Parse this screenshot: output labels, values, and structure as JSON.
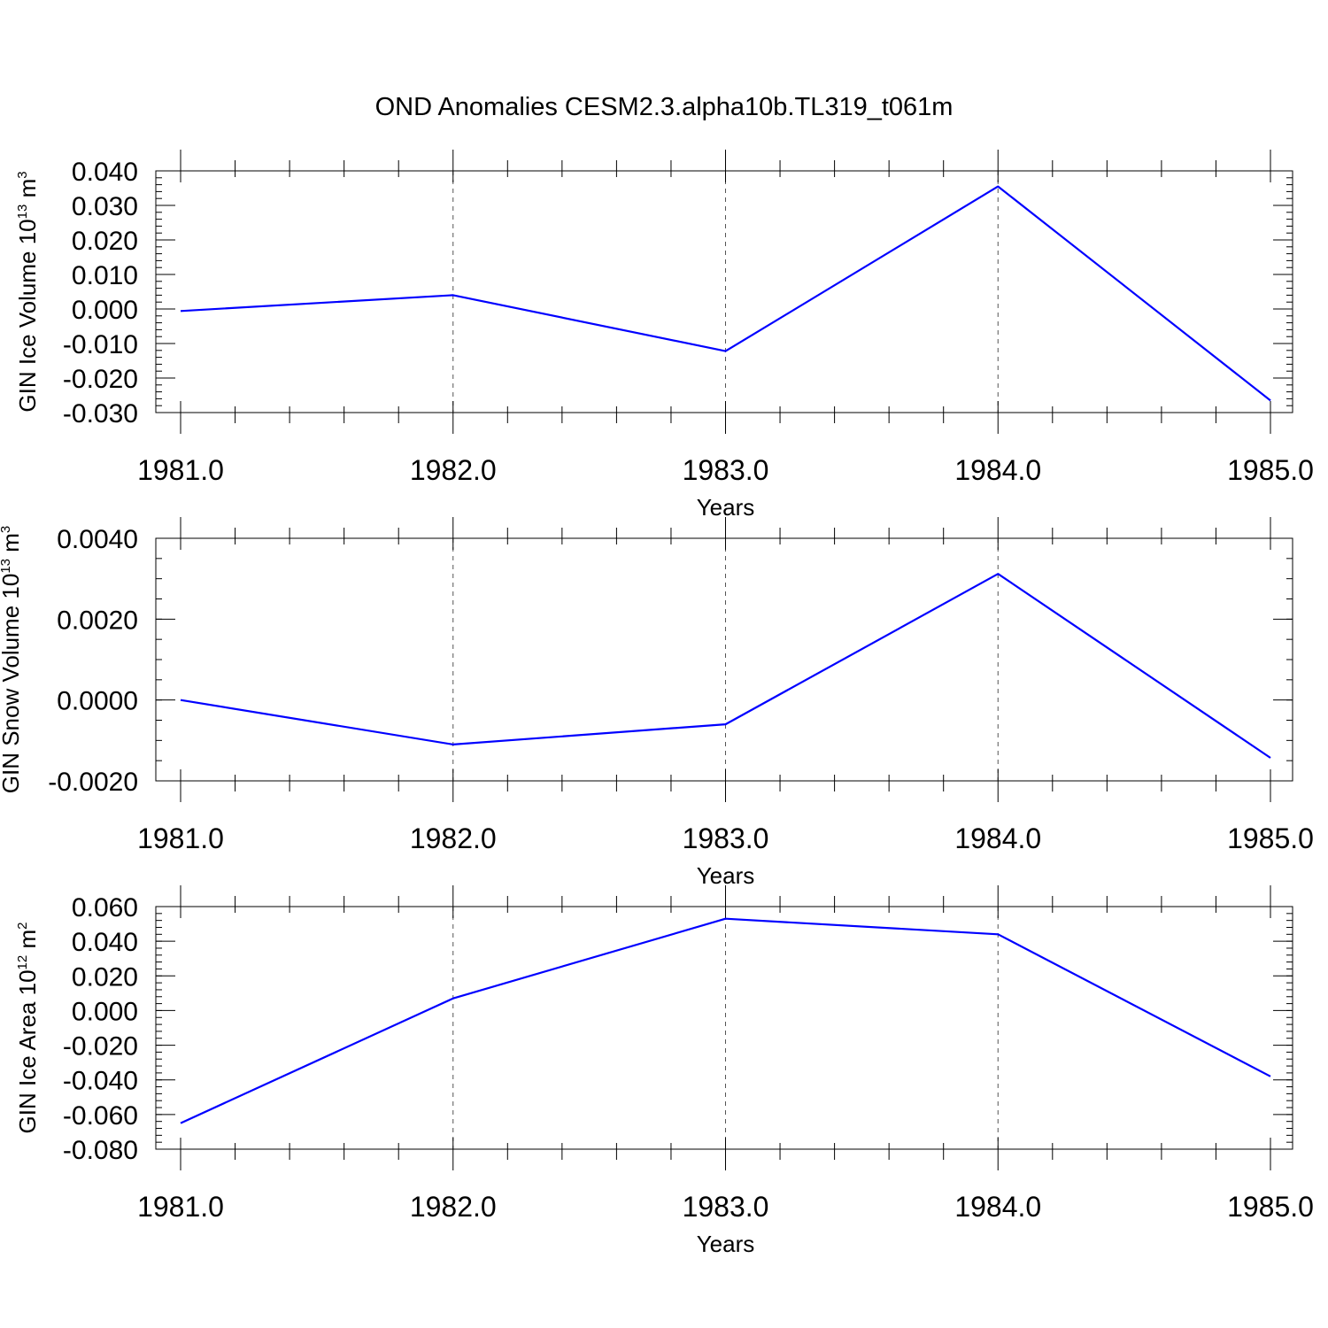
{
  "figure": {
    "title": "OND Anomalies CESM2.3.alpha10b.TL319_t061m"
  },
  "colors": {
    "line": "#0000ff",
    "axis": "#000000",
    "grid": "#555555"
  },
  "chart_data": [
    {
      "type": "line",
      "x": [
        1981.0,
        1982.0,
        1983.0,
        1984.0,
        1985.0
      ],
      "series": [
        {
          "values": [
            -0.0006,
            0.004,
            -0.0122,
            0.0355,
            -0.0265
          ]
        }
      ],
      "xlabel": "Years",
      "ylabel": {
        "main": "GIN Ice Volume 10",
        "exp": "13",
        "unit": "m",
        "unit_exp": "3"
      },
      "xlim": [
        1981.0,
        1985.08
      ],
      "ylim": [
        -0.03,
        0.04
      ],
      "xticks": [
        1981.0,
        1982.0,
        1983.0,
        1984.0,
        1985.0
      ],
      "xtick_labels": [
        "1981.0",
        "1982.0",
        "1983.0",
        "1984.0",
        "1985.0"
      ],
      "yticks": [
        -0.03,
        -0.02,
        -0.01,
        0.0,
        0.01,
        0.02,
        0.03,
        0.04
      ],
      "ytick_labels": [
        "-0.030",
        "-0.020",
        "-0.010",
        "0.000",
        "0.010",
        "0.020",
        "0.030",
        "0.040"
      ],
      "ymin_step": 0.002,
      "grid": "vertical-dashed"
    },
    {
      "type": "line",
      "x": [
        1981.0,
        1982.0,
        1983.0,
        1984.0,
        1985.0
      ],
      "series": [
        {
          "values": [
            0.0,
            -0.0011,
            -0.0006,
            0.00312,
            -0.00143
          ]
        }
      ],
      "xlabel": "Years",
      "ylabel": {
        "main": "GIN Snow Volume 10",
        "exp": "13",
        "unit": "m",
        "unit_exp": "3"
      },
      "xlim": [
        1981.0,
        1985.08
      ],
      "ylim": [
        -0.002,
        0.004
      ],
      "xticks": [
        1981.0,
        1982.0,
        1983.0,
        1984.0,
        1985.0
      ],
      "xtick_labels": [
        "1981.0",
        "1982.0",
        "1983.0",
        "1984.0",
        "1985.0"
      ],
      "yticks": [
        -0.002,
        0.0,
        0.002,
        0.004
      ],
      "ytick_labels": [
        "-0.0020",
        "0.0000",
        "0.0020",
        "0.0040"
      ],
      "ymin_step": 0.0005,
      "grid": "vertical-dashed"
    },
    {
      "type": "line",
      "x": [
        1981.0,
        1982.0,
        1983.0,
        1984.0,
        1985.0
      ],
      "series": [
        {
          "values": [
            -0.065,
            0.007,
            0.053,
            0.044,
            -0.038
          ]
        }
      ],
      "xlabel": "Years",
      "ylabel": {
        "main": "GIN Ice Area 10",
        "exp": "12",
        "unit": "m",
        "unit_exp": "2"
      },
      "xlim": [
        1981.0,
        1985.08
      ],
      "ylim": [
        -0.08,
        0.06
      ],
      "xticks": [
        1981.0,
        1982.0,
        1983.0,
        1984.0,
        1985.0
      ],
      "xtick_labels": [
        "1981.0",
        "1982.0",
        "1983.0",
        "1984.0",
        "1985.0"
      ],
      "yticks": [
        -0.08,
        -0.06,
        -0.04,
        -0.02,
        0.0,
        0.02,
        0.04,
        0.06
      ],
      "ytick_labels": [
        "-0.080",
        "-0.060",
        "-0.040",
        "-0.020",
        "0.000",
        "0.020",
        "0.040",
        "0.060"
      ],
      "ymin_step": 0.004,
      "grid": "vertical-dashed"
    }
  ]
}
